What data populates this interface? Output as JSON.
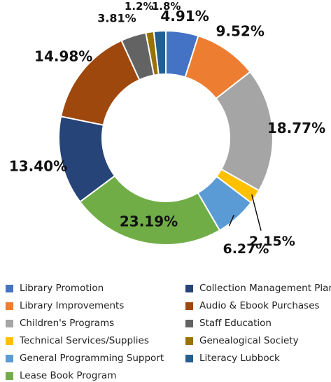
{
  "chart_data": {
    "type": "pie",
    "donut": true,
    "slices": [
      {
        "name": "Library Promotion",
        "value": 4.91,
        "label": "4.91%",
        "color": "#4472C4"
      },
      {
        "name": "Library Improvements",
        "value": 9.52,
        "label": "9.52%",
        "color": "#ED7D31"
      },
      {
        "name": "Children's Programs",
        "value": 18.77,
        "label": "18.77%",
        "color": "#A5A5A5"
      },
      {
        "name": "Technical Services/Supplies",
        "value": 2.15,
        "label": "2.15%",
        "color": "#FFC000"
      },
      {
        "name": "General Programming Support",
        "value": 6.27,
        "label": "6.27%",
        "color": "#5B9BD5"
      },
      {
        "name": "Lease Book Program",
        "value": 23.19,
        "label": "23.19%",
        "color": "#70AD47"
      },
      {
        "name": "Collection Management Plan",
        "value": 13.4,
        "label": "13.40%",
        "color": "#264478"
      },
      {
        "name": "Audio & Ebook Purchases",
        "value": 14.98,
        "label": "14.98%",
        "color": "#9E480E"
      },
      {
        "name": "Staff Education",
        "value": 3.81,
        "label": "3.81%",
        "color": "#636363"
      },
      {
        "name": "Genealogical Society",
        "value": 1.2,
        "label": "1.2%",
        "color": "#997300"
      },
      {
        "name": "Literacy Lubbock",
        "value": 1.8,
        "label": "1.8%",
        "color": "#255E91"
      }
    ],
    "legend_placement": "bottom"
  }
}
